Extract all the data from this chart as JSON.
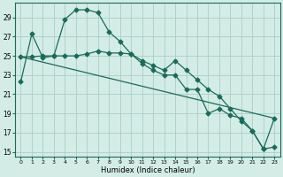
{
  "xlabel": "Humidex (Indice chaleur)",
  "background_color": "#d4ece6",
  "grid_color": "#a8cfc6",
  "line_color": "#1a6b5a",
  "xlim": [
    -0.5,
    23.5
  ],
  "ylim": [
    14.5,
    30.5
  ],
  "xticks": [
    0,
    1,
    2,
    3,
    4,
    5,
    6,
    7,
    8,
    9,
    10,
    11,
    12,
    13,
    14,
    15,
    16,
    17,
    18,
    19,
    20,
    21,
    22,
    23
  ],
  "yticks": [
    15,
    17,
    19,
    21,
    23,
    25,
    27,
    29
  ],
  "series1_x": [
    0,
    1,
    2,
    3,
    4,
    5,
    6,
    7,
    8,
    9,
    10,
    11,
    12,
    13,
    14,
    15,
    16,
    17,
    18,
    19,
    20,
    21,
    22,
    23
  ],
  "series1_y": [
    22.3,
    27.3,
    24.8,
    25.0,
    28.8,
    29.8,
    29.8,
    29.5,
    27.5,
    26.5,
    25.2,
    24.5,
    24.0,
    23.5,
    24.5,
    23.5,
    22.5,
    21.5,
    20.8,
    19.5,
    18.2,
    17.2,
    15.3,
    15.5
  ],
  "series2_x": [
    0,
    1,
    2,
    3,
    4,
    5,
    6,
    7,
    8,
    9,
    10,
    11,
    12,
    13,
    14,
    15,
    16,
    17,
    18,
    19,
    20,
    21,
    22,
    23
  ],
  "series2_y": [
    24.9,
    24.9,
    25.0,
    25.0,
    25.0,
    25.0,
    25.2,
    25.5,
    25.3,
    25.3,
    25.2,
    24.2,
    23.5,
    23.0,
    23.0,
    21.5,
    21.5,
    19.0,
    19.5,
    18.8,
    18.5,
    17.2,
    15.3,
    18.5
  ],
  "series3_x": [
    0,
    23
  ],
  "series3_y": [
    24.9,
    18.5
  ],
  "marker": "D",
  "markersize": 2.5,
  "lw": 0.9
}
